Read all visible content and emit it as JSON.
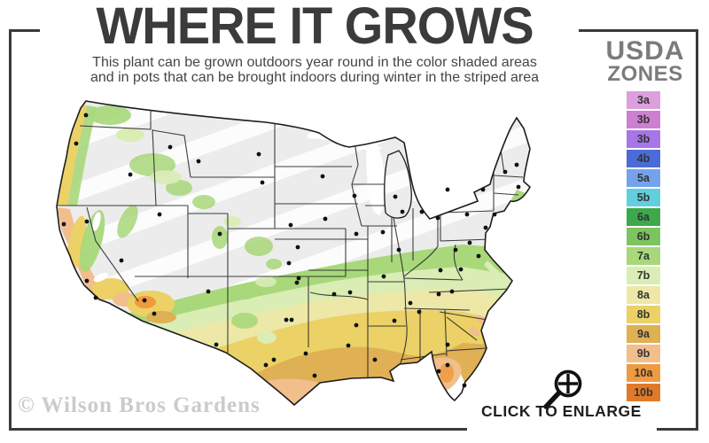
{
  "header": {
    "title": "WHERE IT GROWS",
    "subtitle_line1": "This plant can be grown outdoors year round in the color shaded areas",
    "subtitle_line2": "and in pots that can be brought indoors during winter in the striped area"
  },
  "legend": {
    "title_line1": "USDA",
    "title_line2": "ZONES",
    "zones": [
      {
        "label": "3a",
        "color": "#dd9fdd"
      },
      {
        "label": "3b",
        "color": "#cc80cf"
      },
      {
        "label": "3b",
        "color": "#a875e8"
      },
      {
        "label": "4b",
        "color": "#4a6bd8"
      },
      {
        "label": "5a",
        "color": "#74a3eb"
      },
      {
        "label": "5b",
        "color": "#62cfde"
      },
      {
        "label": "6a",
        "color": "#3da84c"
      },
      {
        "label": "6b",
        "color": "#7cc460"
      },
      {
        "label": "7a",
        "color": "#a8d87a"
      },
      {
        "label": "7b",
        "color": "#d9edb4"
      },
      {
        "label": "8a",
        "color": "#ede8a8"
      },
      {
        "label": "8b",
        "color": "#ebd166"
      },
      {
        "label": "9a",
        "color": "#dfb054"
      },
      {
        "label": "9b",
        "color": "#f2be8c"
      },
      {
        "label": "10a",
        "color": "#f09a40"
      },
      {
        "label": "10b",
        "color": "#e07a28"
      }
    ]
  },
  "map": {
    "city_dots": [
      [
        45,
        30
      ],
      [
        34,
        62
      ],
      [
        95,
        97
      ],
      [
        140,
        66
      ],
      [
        172,
        82
      ],
      [
        240,
        74
      ],
      [
        244,
        106
      ],
      [
        20,
        153
      ],
      [
        46,
        150
      ],
      [
        85,
        194
      ],
      [
        46,
        217
      ],
      [
        56,
        236
      ],
      [
        111,
        239
      ],
      [
        122,
        254
      ],
      [
        128,
        142
      ],
      [
        196,
        164
      ],
      [
        183,
        229
      ],
      [
        192,
        289
      ],
      [
        276,
        154
      ],
      [
        284,
        179
      ],
      [
        274,
        197
      ],
      [
        312,
        99
      ],
      [
        348,
        121
      ],
      [
        394,
        122
      ],
      [
        402,
        139
      ],
      [
        315,
        147
      ],
      [
        350,
        164
      ],
      [
        380,
        162
      ],
      [
        398,
        182
      ],
      [
        424,
        139
      ],
      [
        442,
        146
      ],
      [
        283,
        219
      ],
      [
        271,
        261
      ],
      [
        277,
        261
      ],
      [
        293,
        299
      ],
      [
        257,
        306
      ],
      [
        248,
        312
      ],
      [
        303,
        324
      ],
      [
        285,
        214
      ],
      [
        325,
        232
      ],
      [
        343,
        230
      ],
      [
        381,
        212
      ],
      [
        411,
        242
      ],
      [
        393,
        262
      ],
      [
        350,
        267
      ],
      [
        341,
        290
      ],
      [
        371,
        306
      ],
      [
        421,
        252
      ],
      [
        488,
        189
      ],
      [
        478,
        174
      ],
      [
        496,
        157
      ],
      [
        506,
        142
      ],
      [
        533,
        111
      ],
      [
        493,
        114
      ],
      [
        518,
        94
      ],
      [
        531,
        86
      ],
      [
        453,
        114
      ],
      [
        462,
        182
      ],
      [
        475,
        142
      ],
      [
        445,
        205
      ],
      [
        468,
        204
      ],
      [
        443,
        232
      ],
      [
        458,
        229
      ],
      [
        453,
        289
      ],
      [
        443,
        319
      ],
      [
        453,
        312
      ],
      [
        472,
        335
      ]
    ]
  },
  "footer": {
    "watermark": "© Wilson Bros Gardens",
    "enlarge_label": "CLICK TO ENLARGE"
  },
  "colors": {
    "frame": "#3a3a3a",
    "title": "#3b3b3b",
    "subtitle": "#454545",
    "legend_title": "#7b7b7b",
    "watermark": "#cbcbcb",
    "enlarge": "#1f1f1f",
    "map_base": "#ececec",
    "map_stripe": "#ffffff",
    "map_outline": "#1c1c1c"
  }
}
